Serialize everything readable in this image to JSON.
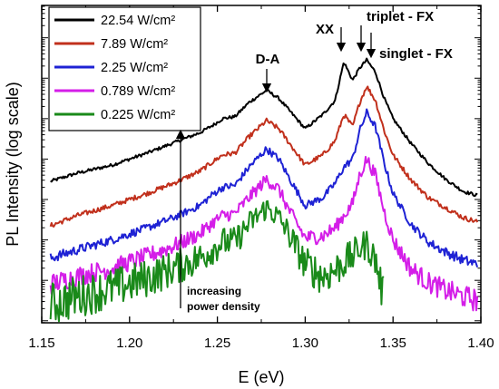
{
  "chart_data": {
    "type": "line",
    "xlabel": "E (eV)",
    "ylabel": "PL Intensity (log scale)",
    "xlim": [
      1.15,
      1.4
    ],
    "xticks": [
      "1.15",
      "1.20",
      "1.25",
      "1.30",
      "1.35",
      "1.40"
    ],
    "ylog": true,
    "yticklabels": "none",
    "grid": false,
    "legend_position": "top-left",
    "series": [
      {
        "name": "22.54 W/cm²",
        "color": "#000000",
        "x": [
          1.155,
          1.17,
          1.19,
          1.21,
          1.225,
          1.24,
          1.248,
          1.253,
          1.26,
          1.268,
          1.278,
          1.285,
          1.29,
          1.3,
          1.31,
          1.317,
          1.322,
          1.327,
          1.331,
          1.335,
          1.34,
          1.345,
          1.35,
          1.36,
          1.37,
          1.38,
          1.39,
          1.398
        ],
        "y": [
          -4.55,
          -4.35,
          -4.15,
          -3.85,
          -3.6,
          -3.35,
          -3.15,
          -3.0,
          -2.95,
          -2.6,
          -2.3,
          -2.5,
          -2.75,
          -3.25,
          -2.9,
          -2.55,
          -1.6,
          -2.05,
          -1.75,
          -1.55,
          -1.85,
          -2.5,
          -3.0,
          -3.6,
          -4.1,
          -4.5,
          -4.8,
          -4.9
        ]
      },
      {
        "name": "7.89 W/cm²",
        "color": "#c1301c",
        "x": [
          1.155,
          1.17,
          1.19,
          1.21,
          1.225,
          1.24,
          1.248,
          1.253,
          1.26,
          1.268,
          1.278,
          1.285,
          1.29,
          1.3,
          1.31,
          1.317,
          1.322,
          1.327,
          1.331,
          1.335,
          1.34,
          1.345,
          1.35,
          1.36,
          1.37,
          1.38,
          1.39,
          1.398
        ],
        "y": [
          -5.65,
          -5.4,
          -5.15,
          -4.85,
          -4.6,
          -4.3,
          -4.05,
          -3.9,
          -3.85,
          -3.45,
          -3.05,
          -3.25,
          -3.55,
          -4.15,
          -3.9,
          -3.55,
          -2.9,
          -3.2,
          -2.6,
          -2.2,
          -2.55,
          -3.3,
          -3.9,
          -4.5,
          -4.95,
          -5.2,
          -5.45,
          -5.55
        ]
      },
      {
        "name": "2.25 W/cm²",
        "color": "#1e22d4",
        "x": [
          1.155,
          1.17,
          1.19,
          1.21,
          1.225,
          1.24,
          1.248,
          1.253,
          1.26,
          1.268,
          1.278,
          1.285,
          1.29,
          1.3,
          1.31,
          1.317,
          1.322,
          1.327,
          1.331,
          1.335,
          1.34,
          1.345,
          1.35,
          1.36,
          1.37,
          1.38,
          1.39,
          1.398
        ],
        "y": [
          -6.45,
          -6.25,
          -6.0,
          -5.7,
          -5.45,
          -5.15,
          -4.85,
          -4.7,
          -4.65,
          -4.2,
          -3.75,
          -4.0,
          -4.4,
          -5.15,
          -4.95,
          -4.6,
          -4.2,
          -4.0,
          -3.3,
          -2.85,
          -3.2,
          -4.1,
          -4.85,
          -5.6,
          -6.05,
          -6.3,
          -6.5,
          -6.6
        ]
      },
      {
        "name": "0.789 W/cm²",
        "color": "#d41ee8",
        "x": [
          1.155,
          1.17,
          1.19,
          1.21,
          1.225,
          1.24,
          1.248,
          1.253,
          1.26,
          1.268,
          1.278,
          1.285,
          1.29,
          1.3,
          1.31,
          1.317,
          1.322,
          1.327,
          1.331,
          1.335,
          1.34,
          1.345,
          1.35,
          1.36,
          1.37,
          1.38,
          1.39,
          1.398
        ],
        "y": [
          -7.1,
          -6.9,
          -6.7,
          -6.4,
          -6.15,
          -5.85,
          -5.55,
          -5.4,
          -5.35,
          -4.95,
          -4.5,
          -4.75,
          -5.2,
          -5.95,
          -5.9,
          -5.7,
          -5.4,
          -5.1,
          -4.4,
          -4.0,
          -4.4,
          -5.3,
          -6.0,
          -6.7,
          -7.05,
          -7.25,
          -7.4,
          -7.5
        ]
      },
      {
        "name": "0.225 W/cm²",
        "color": "#1a8a1a",
        "x": [
          1.155,
          1.17,
          1.19,
          1.21,
          1.225,
          1.24,
          1.248,
          1.253,
          1.26,
          1.268,
          1.278,
          1.285,
          1.29,
          1.3,
          1.31,
          1.317,
          1.322,
          1.327,
          1.331,
          1.335,
          1.34,
          1.345
        ],
        "y": [
          -7.6,
          -7.4,
          -7.2,
          -6.95,
          -6.7,
          -6.45,
          -6.2,
          -6.05,
          -6.05,
          -5.6,
          -5.2,
          -5.45,
          -5.8,
          -6.6,
          -6.9,
          -6.75,
          -6.55,
          -6.4,
          -6.2,
          -6.1,
          -6.5,
          -7.5
        ]
      }
    ],
    "annotations": {
      "da": "D-A",
      "xx": "XX",
      "triplet": "triplet - FX",
      "singlet": "singlet - FX",
      "power_line1": "increasing",
      "power_line2": "power density"
    }
  }
}
